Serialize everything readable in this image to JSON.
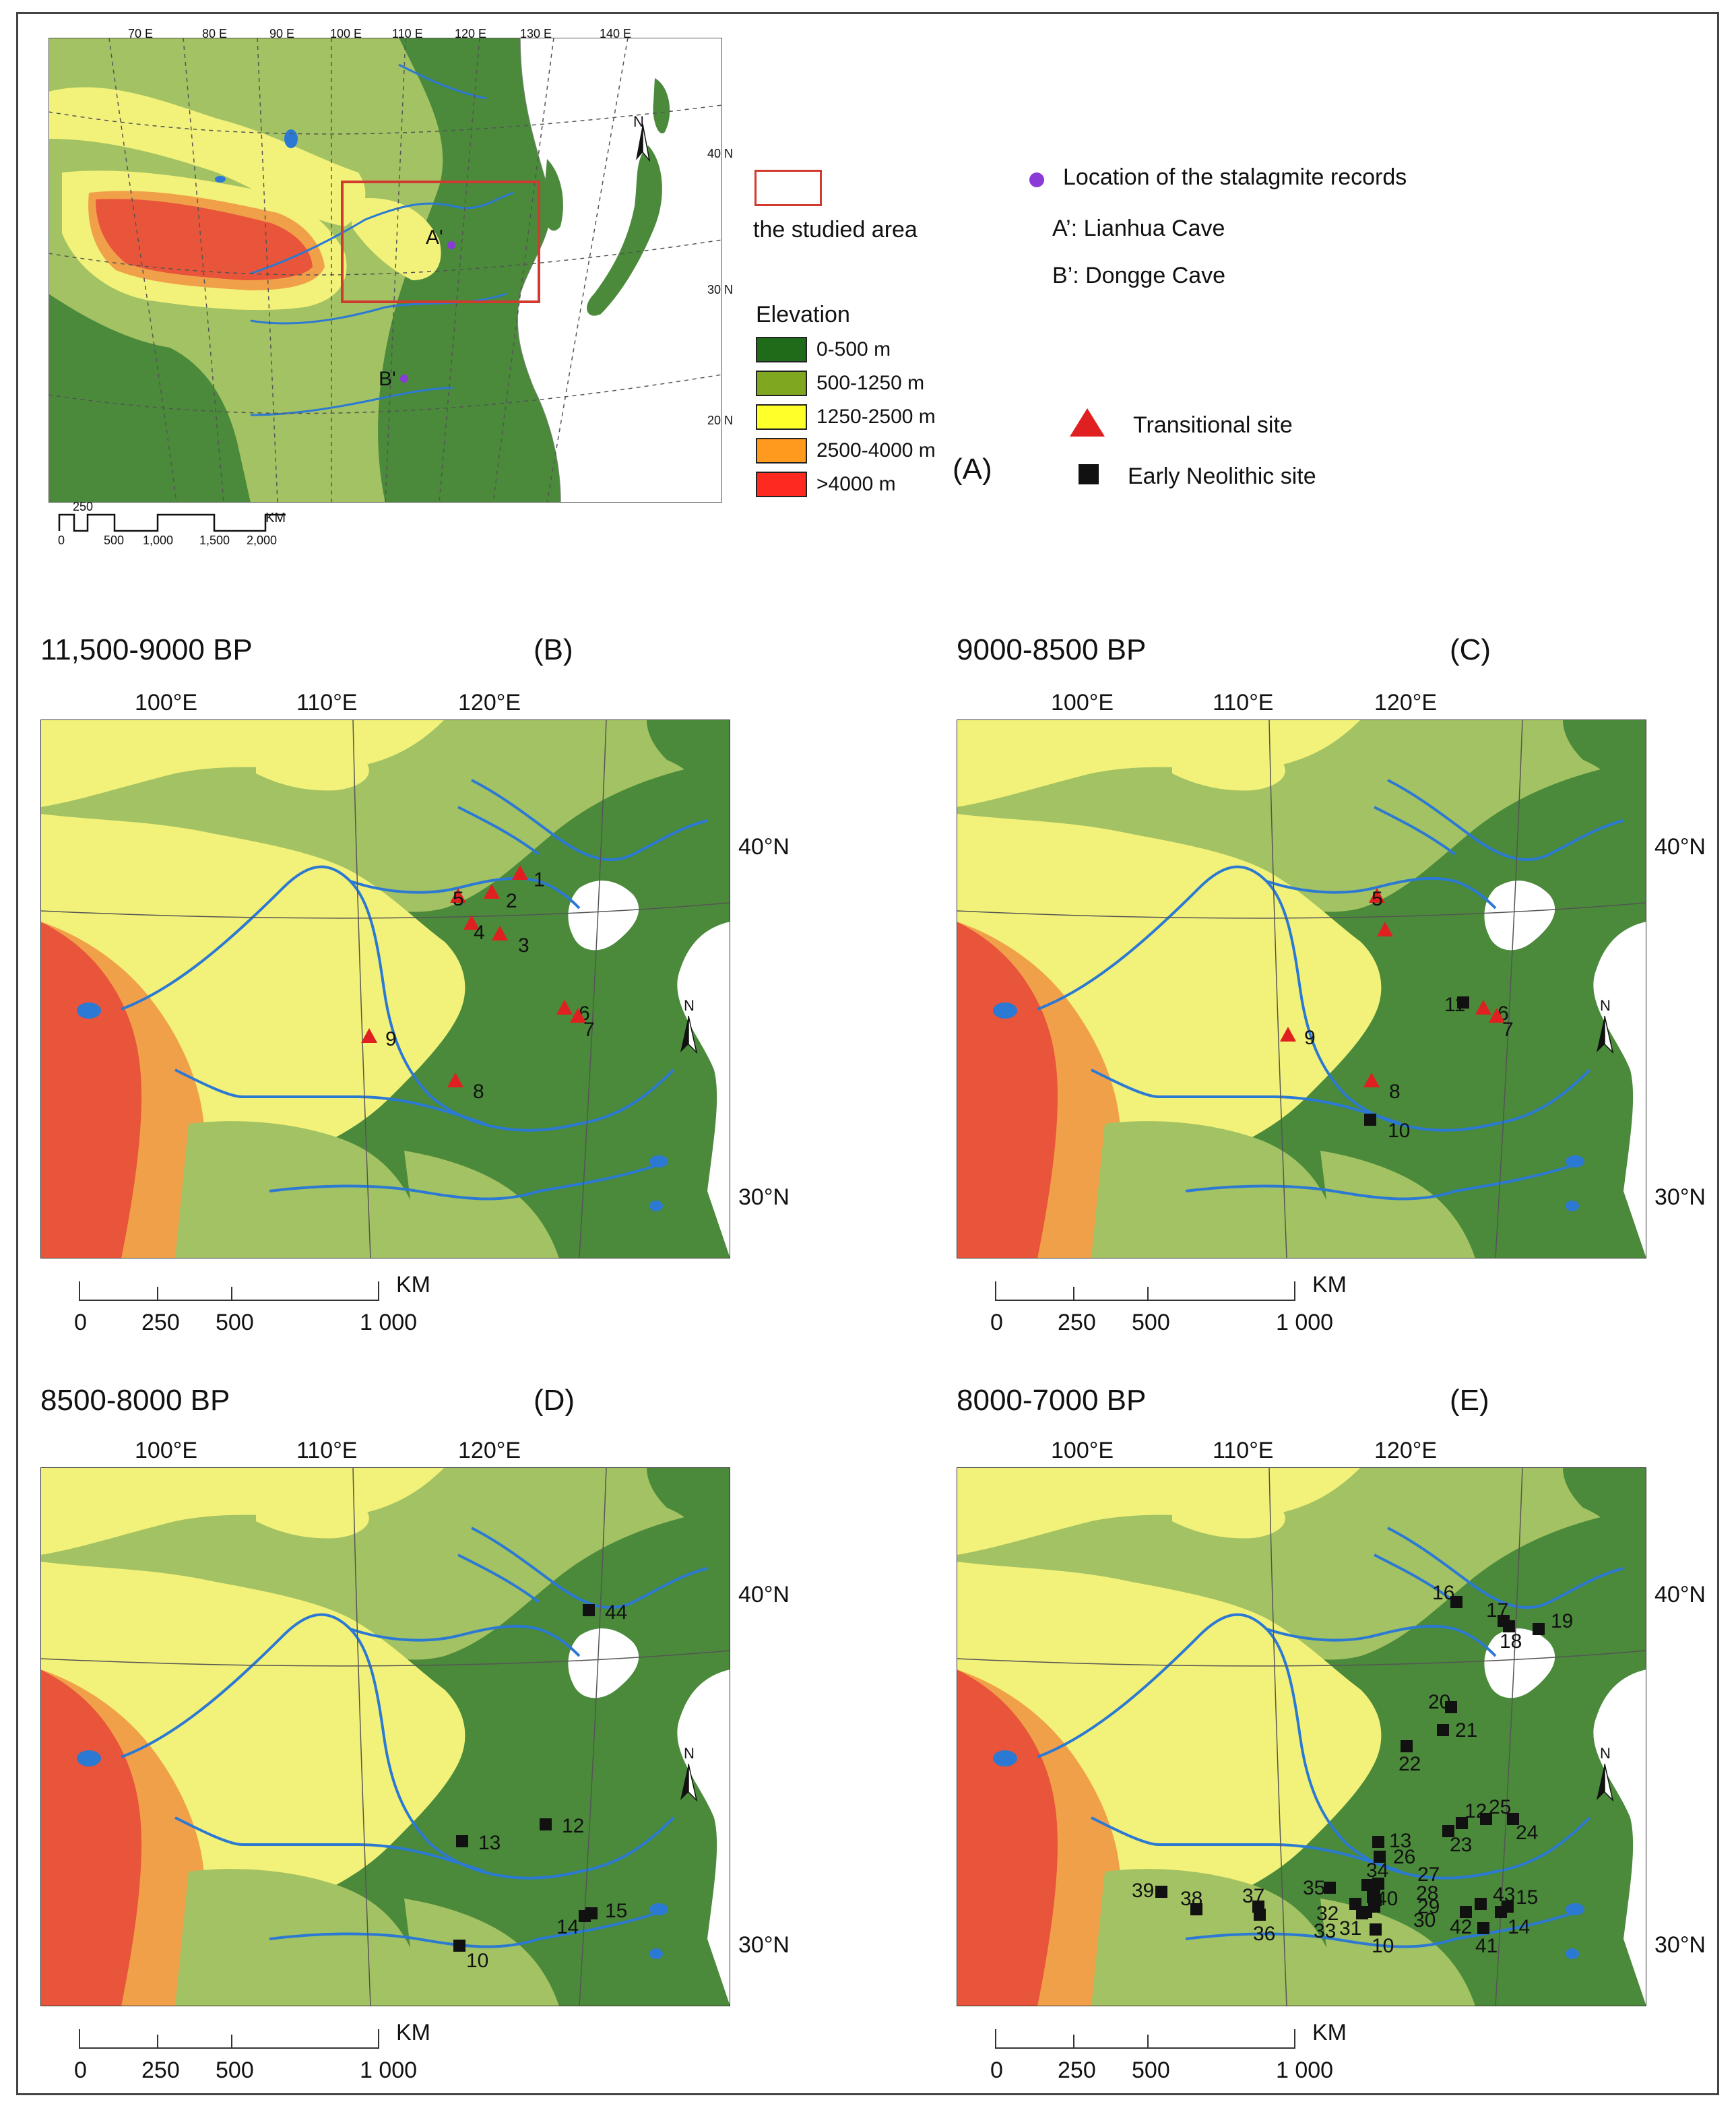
{
  "colors": {
    "elev_0_500": "#4a8a3a",
    "elev_500_1250": "#a3c263",
    "elev_1250_2500": "#f2f27a",
    "elev_2500_4000": "#f1a04a",
    "elev_4000": "#e8553a",
    "water": "#2c79d4",
    "studied_area": "#d13b2f",
    "stalagmite": "#8a3ad6",
    "transitional": "#e02020",
    "neolithic": "#111111"
  },
  "overview": {
    "panel_label": "(A)",
    "lon_labels": [
      "70 E",
      "80 E",
      "90 E",
      "100 E",
      "110 E",
      "120 E",
      "130 E",
      "140 E"
    ],
    "lat_labels": [
      "40 N",
      "30 N",
      "20 N"
    ],
    "cave_a": "A'",
    "cave_b": "B'",
    "north": "N",
    "scale_top": "250",
    "scale_ticks": [
      "0",
      "500",
      "1,000",
      "1,500",
      "2,000"
    ],
    "scale_unit": "KM"
  },
  "legend": {
    "studied_area": "the studied area",
    "elevation_title": "Elevation",
    "elevation_classes": [
      "0-500 m",
      "500-1250 m",
      "1250-2500 m",
      "2500-4000 m",
      ">4000 m"
    ],
    "stalagmite_title": "Location of the stalagmite records",
    "cave_a": "A’: Lianhua Cave",
    "cave_b": "B’: Dongge Cave",
    "transitional": "Transitional site",
    "neolithic": "Early Neolithic site"
  },
  "panels": [
    {
      "id": "B",
      "period": "11,500-9000 BP",
      "label": "(B)",
      "transitional": [
        {
          "n": "1",
          "lx": 1.0,
          "ly": 0.98
        },
        {
          "n": "2",
          "lx": 1.05,
          "ly": 1.15
        },
        {
          "n": "3",
          "lx": 1.35,
          "ly": 1.35
        },
        {
          "n": "4",
          "lx": 0.15,
          "ly": 1.2
        },
        {
          "n": "5",
          "lx": -0.4,
          "ly": 0.7
        },
        {
          "n": "6",
          "lx": 1.05,
          "ly": 0.9
        },
        {
          "n": "7",
          "lx": 0.4,
          "ly": 1.5
        },
        {
          "n": "8",
          "lx": 1.3,
          "ly": 1.3
        },
        {
          "n": "9",
          "lx": 1.2,
          "ly": 0.7
        }
      ],
      "neolithic": []
    },
    {
      "id": "C",
      "period": "9000-8500 BP",
      "label": "(C)",
      "transitional": [
        {
          "n": "5",
          "lx": -0.4,
          "ly": 0.7
        },
        {
          "n": "",
          "lx": 0,
          "ly": 0
        },
        {
          "n": "6",
          "lx": 1.05,
          "ly": 0.9
        },
        {
          "n": "7",
          "lx": 0.4,
          "ly": 1.5
        },
        {
          "n": "8",
          "lx": 1.3,
          "ly": 1.3
        },
        {
          "n": "9",
          "lx": 1.2,
          "ly": 0.7
        }
      ],
      "neolithic": [
        {
          "n": "11",
          "lx": -1.4,
          "ly": 0.65
        },
        {
          "n": "10",
          "lx": 1.3,
          "ly": 1.3
        }
      ]
    },
    {
      "id": "D",
      "period": "8500-8000 BP",
      "label": "(D)",
      "transitional": [],
      "neolithic": [
        {
          "n": "44",
          "lx": 1.2,
          "ly": 0.65
        },
        {
          "n": "13",
          "lx": 1.2,
          "ly": 0.6
        },
        {
          "n": "12",
          "lx": 1.2,
          "ly": 0.6
        },
        {
          "n": "14",
          "lx": -2.1,
          "ly": 1.3
        },
        {
          "n": "15",
          "lx": 1.0,
          "ly": 0.3
        },
        {
          "n": "10",
          "lx": 0.5,
          "ly": 1.6
        }
      ]
    },
    {
      "id": "E",
      "period": "8000-7000 BP",
      "label": "(E)",
      "transitional": [],
      "neolithic": [
        {
          "n": "16",
          "lx": -1.8,
          "ly": -0.2
        },
        {
          "n": "17",
          "lx": -1.3,
          "ly": -0.3
        },
        {
          "n": "18",
          "lx": -0.7,
          "ly": 1.6
        },
        {
          "n": "19",
          "lx": 0.9,
          "ly": -0.1
        },
        {
          "n": "20",
          "lx": -1.7,
          "ly": 0.1
        },
        {
          "n": "21",
          "lx": 0.9,
          "ly": 0.5
        },
        {
          "n": "22",
          "lx": -0.6,
          "ly": 1.8
        },
        {
          "n": "12",
          "lx": 0.2,
          "ly": -0.4
        },
        {
          "n": "25",
          "lx": 0.2,
          "ly": -0.4
        },
        {
          "n": "23",
          "lx": 0.1,
          "ly": 1.5
        },
        {
          "n": "24",
          "lx": 0.2,
          "ly": 1.5
        },
        {
          "n": "13",
          "lx": 0.8,
          "ly": 0.4
        },
        {
          "n": "26",
          "lx": 1.0,
          "ly": 0.5
        },
        {
          "n": "27",
          "lx": 2.9,
          "ly": -0.2
        },
        {
          "n": "28",
          "lx": 3.1,
          "ly": 0.6
        },
        {
          "n": "29",
          "lx": 3.1,
          "ly": 1.0
        },
        {
          "n": "30",
          "lx": 2.9,
          "ly": 1.5
        },
        {
          "n": "34",
          "lx": -0.1,
          "ly": -0.6
        },
        {
          "n": "40",
          "lx": 0.2,
          "ly": 0.6
        },
        {
          "n": "35",
          "lx": -2.0,
          "ly": 0.5
        },
        {
          "n": "32",
          "lx": -2.9,
          "ly": 1.2
        },
        {
          "n": "31",
          "lx": -2.0,
          "ly": 1.7
        },
        {
          "n": "33",
          "lx": -3.6,
          "ly": 1.8
        },
        {
          "n": "10",
          "lx": -0.3,
          "ly": 1.7
        },
        {
          "n": "43",
          "lx": 0.9,
          "ly": -0.2
        },
        {
          "n": "42",
          "lx": -1.2,
          "ly": 1.6
        },
        {
          "n": "41",
          "lx": -0.6,
          "ly": 1.8
        },
        {
          "n": "15",
          "lx": 0.6,
          "ly": -0.2
        },
        {
          "n": "14",
          "lx": 0.5,
          "ly": 1.6
        },
        {
          "n": "39",
          "lx": -2.2,
          "ly": 0.4
        },
        {
          "n": "38",
          "lx": -1.2,
          "ly": -0.3
        },
        {
          "n": "37",
          "lx": -1.2,
          "ly": -0.3
        },
        {
          "n": "36",
          "lx": -0.5,
          "ly": 1.9
        }
      ]
    }
  ],
  "map_axes": {
    "lon_labels": [
      "100°E",
      "110°E",
      "120°E"
    ],
    "lat_labels": [
      "40°N",
      "30°N"
    ],
    "north": "N",
    "scale_ticks": [
      "0",
      "250",
      "500",
      "1 000"
    ],
    "scale_unit": "KM"
  }
}
